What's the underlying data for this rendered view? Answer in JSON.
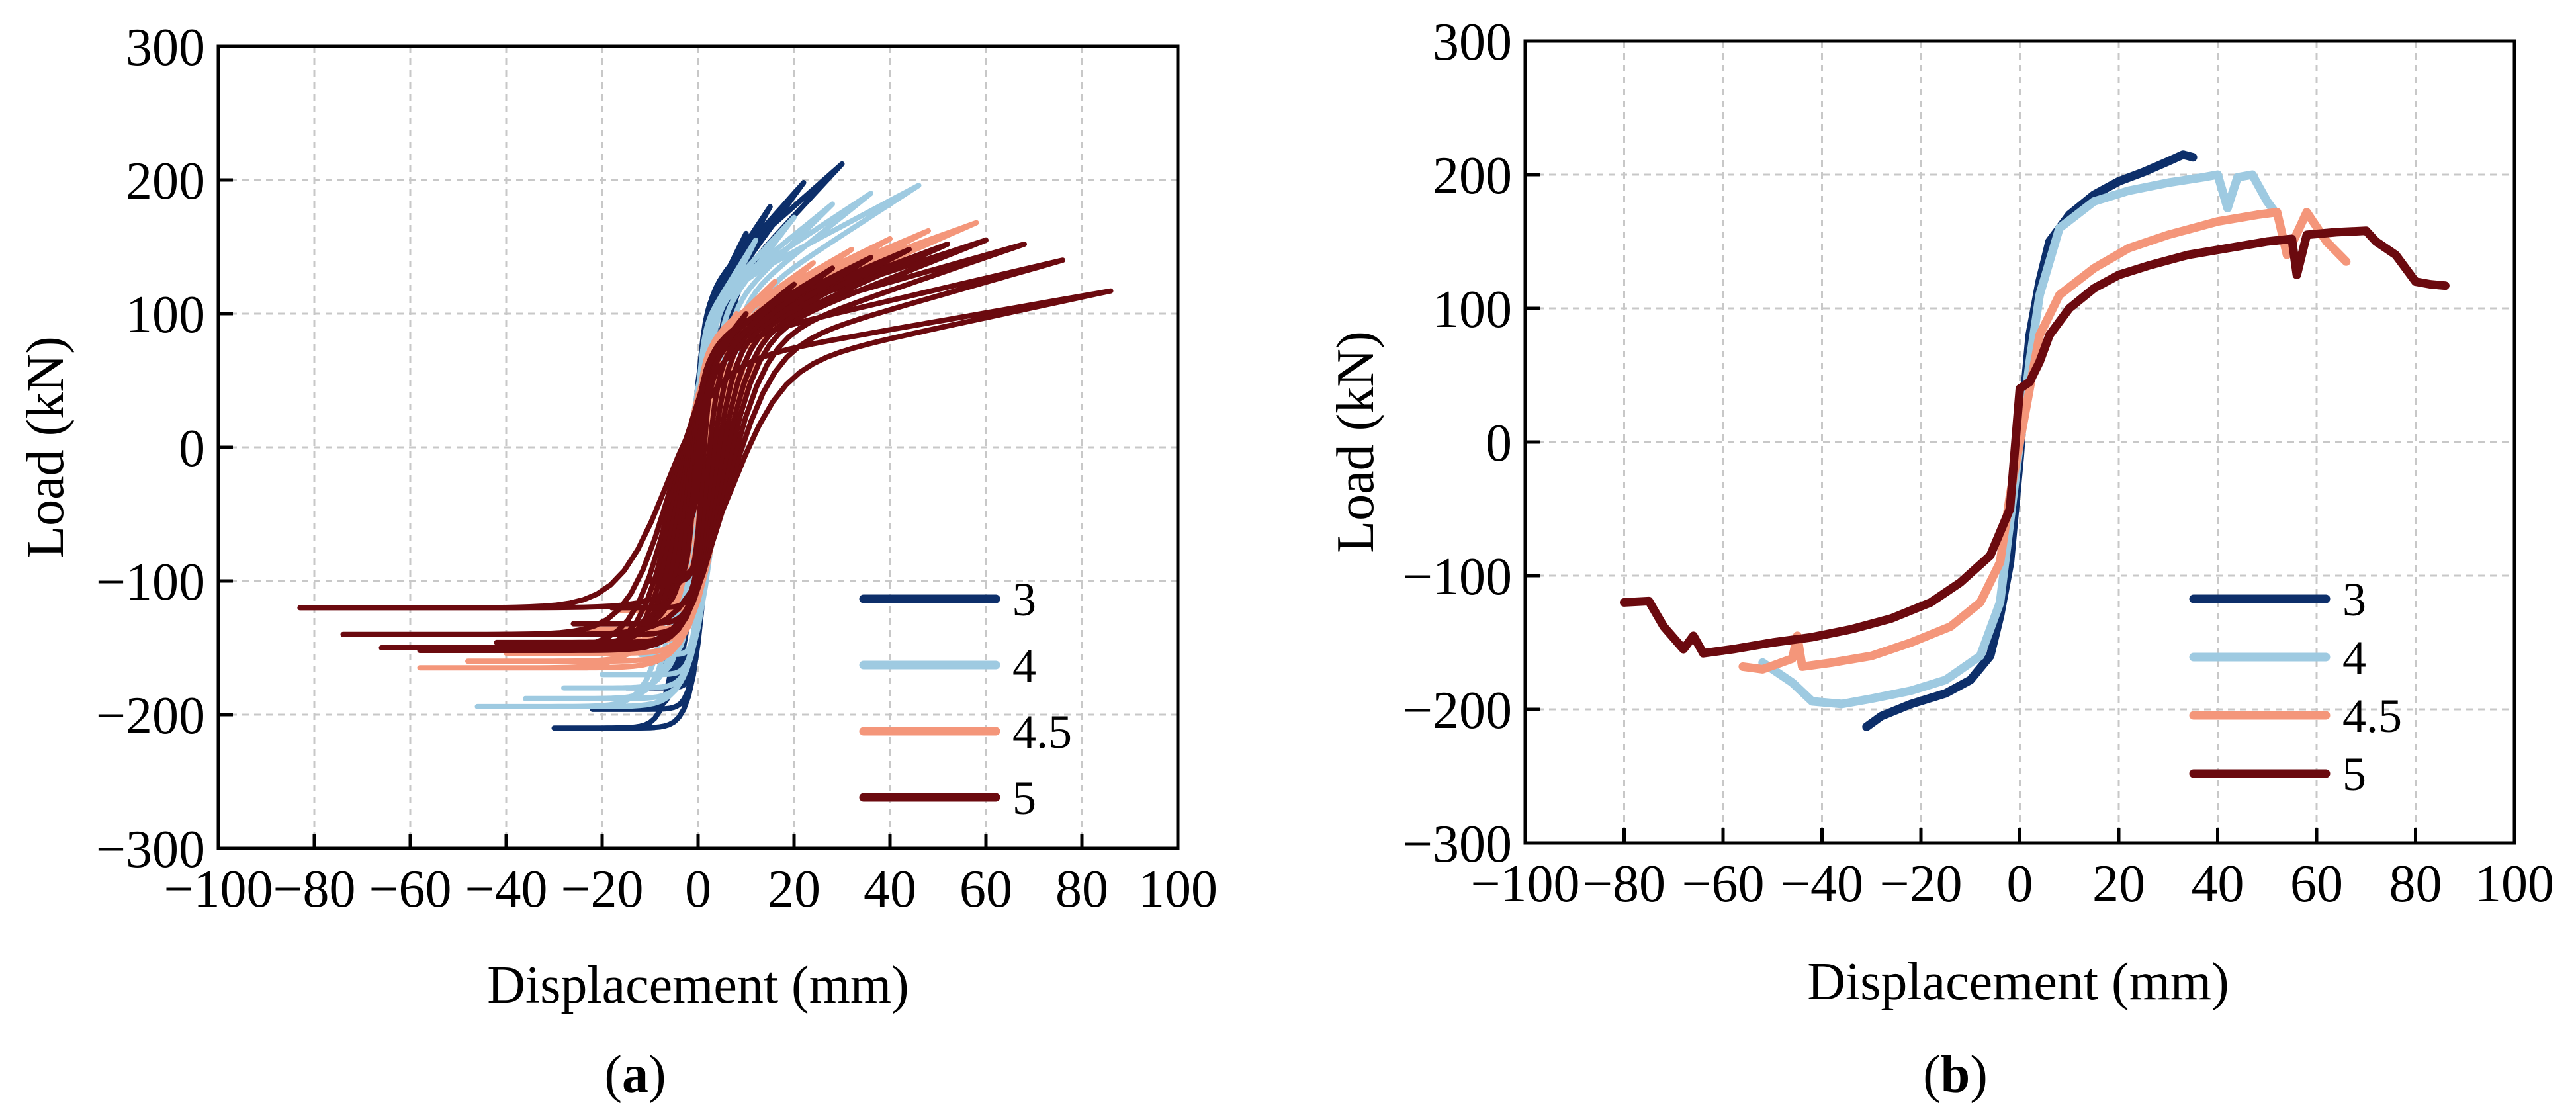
{
  "chart_data": [
    {
      "id": "a",
      "type": "line",
      "caption_label": "a",
      "xlabel": "Displacement (mm)",
      "ylabel": "Load (kN)",
      "xlim": [
        -100,
        100
      ],
      "ylim": [
        -300,
        300
      ],
      "xticks": [
        -100,
        -80,
        -60,
        -40,
        -20,
        0,
        20,
        40,
        60,
        80,
        100
      ],
      "yticks": [
        -300,
        -200,
        -100,
        0,
        100,
        200,
        300
      ],
      "xtick_labels": [
        "−100",
        "−80",
        "−60",
        "−40",
        "−20",
        "0",
        "20",
        "40",
        "60",
        "80",
        "100"
      ],
      "ytick_labels": [
        "−300",
        "−200",
        "−100",
        "0",
        "100",
        "200",
        "300"
      ],
      "grid": true,
      "legend_position": "bottom-right",
      "series": [
        {
          "name": "3",
          "color": "#0d2f6a",
          "cycles": [
            [
              -30,
              -210,
              30,
              212
            ],
            [
              -22,
              -196,
              22,
              198
            ],
            [
              -15,
              -180,
              15,
              180
            ],
            [
              -10,
              -160,
              10,
              160
            ],
            [
              -6,
              -130,
              6,
              130
            ]
          ]
        },
        {
          "name": "4",
          "color": "#9ecae1",
          "cycles": [
            [
              -46,
              -194,
              46,
              196
            ],
            [
              -36,
              -188,
              36,
              190
            ],
            [
              -28,
              -180,
              28,
              182
            ],
            [
              -20,
              -170,
              20,
              172
            ],
            [
              -12,
              -155,
              12,
              155
            ],
            [
              -6,
              -120,
              6,
              120
            ]
          ]
        },
        {
          "name": "4.5",
          "color": "#f4967a",
          "cycles": [
            [
              -58,
              -165,
              58,
              168
            ],
            [
              -48,
              -160,
              48,
              162
            ],
            [
              -40,
              -154,
              40,
              156
            ],
            [
              -32,
              -146,
              32,
              148
            ],
            [
              -24,
              -136,
              24,
              138
            ],
            [
              -16,
              -122,
              16,
              124
            ],
            [
              -8,
              -100,
              8,
              100
            ]
          ]
        },
        {
          "name": "5",
          "color": "#6b0a0f",
          "cycles": [
            [
              -83,
              -120,
              86,
              117
            ],
            [
              -74,
              -140,
              76,
              140
            ],
            [
              -66,
              -150,
              68,
              152
            ],
            [
              -58,
              -152,
              60,
              155
            ],
            [
              -50,
              -150,
              52,
              152
            ],
            [
              -42,
              -146,
              44,
              148
            ],
            [
              -34,
              -140,
              36,
              142
            ],
            [
              -26,
              -132,
              28,
              134
            ],
            [
              -18,
              -120,
              20,
              122
            ],
            [
              -10,
              -100,
              10,
              100
            ],
            [
              -4,
              -60,
              4,
              60
            ]
          ]
        }
      ]
    },
    {
      "id": "b",
      "type": "line",
      "caption_label": "b",
      "xlabel": "Displacement (mm)",
      "ylabel": "Load (kN)",
      "xlim": [
        -100,
        100
      ],
      "ylim": [
        -300,
        300
      ],
      "xticks": [
        -100,
        -80,
        -60,
        -40,
        -20,
        0,
        20,
        40,
        60,
        80,
        100
      ],
      "yticks": [
        -300,
        -200,
        -100,
        0,
        100,
        200,
        300
      ],
      "xtick_labels": [
        "−100",
        "−80",
        "−60",
        "−40",
        "−20",
        "0",
        "20",
        "40",
        "60",
        "80",
        "100"
      ],
      "ytick_labels": [
        "−300",
        "−200",
        "−100",
        "0",
        "100",
        "200",
        "300"
      ],
      "grid": true,
      "legend_position": "bottom-right",
      "series": [
        {
          "name": "3",
          "color": "#0d2f6a",
          "points": [
            [
              -31,
              -213
            ],
            [
              -28,
              -205
            ],
            [
              -22,
              -196
            ],
            [
              -15,
              -188
            ],
            [
              -10,
              -178
            ],
            [
              -6,
              -160
            ],
            [
              -4,
              -130
            ],
            [
              -2,
              -90
            ],
            [
              0,
              -10
            ],
            [
              1,
              40
            ],
            [
              2,
              80
            ],
            [
              4,
              120
            ],
            [
              6,
              150
            ],
            [
              10,
              170
            ],
            [
              15,
              185
            ],
            [
              20,
              195
            ],
            [
              25,
              202
            ],
            [
              30,
              210
            ],
            [
              33,
              215
            ],
            [
              35,
              213
            ]
          ]
        },
        {
          "name": "4",
          "color": "#9ecae1",
          "points": [
            [
              -52,
              -165
            ],
            [
              -46,
              -180
            ],
            [
              -42,
              -194
            ],
            [
              -36,
              -196
            ],
            [
              -30,
              -192
            ],
            [
              -22,
              -186
            ],
            [
              -15,
              -178
            ],
            [
              -8,
              -160
            ],
            [
              -4,
              -120
            ],
            [
              -2,
              -60
            ],
            [
              0,
              0
            ],
            [
              2,
              60
            ],
            [
              4,
              110
            ],
            [
              8,
              160
            ],
            [
              15,
              180
            ],
            [
              22,
              188
            ],
            [
              30,
              194
            ],
            [
              37,
              198
            ],
            [
              40,
              200
            ],
            [
              42,
              175
            ],
            [
              44,
              198
            ],
            [
              47,
              200
            ],
            [
              50,
              180
            ],
            [
              52,
              170
            ]
          ]
        },
        {
          "name": "4.5",
          "color": "#f4967a",
          "points": [
            [
              -56,
              -168
            ],
            [
              -52,
              -170
            ],
            [
              -46,
              -162
            ],
            [
              -45,
              -145
            ],
            [
              -44,
              -168
            ],
            [
              -38,
              -165
            ],
            [
              -30,
              -160
            ],
            [
              -22,
              -150
            ],
            [
              -14,
              -138
            ],
            [
              -8,
              -120
            ],
            [
              -4,
              -90
            ],
            [
              -2,
              -40
            ],
            [
              0,
              0
            ],
            [
              2,
              40
            ],
            [
              4,
              80
            ],
            [
              8,
              110
            ],
            [
              15,
              130
            ],
            [
              22,
              145
            ],
            [
              30,
              155
            ],
            [
              40,
              165
            ],
            [
              48,
              170
            ],
            [
              52,
              172
            ],
            [
              54,
              140
            ],
            [
              58,
              172
            ],
            [
              62,
              150
            ],
            [
              66,
              135
            ]
          ]
        },
        {
          "name": "5",
          "color": "#6b0a0f",
          "points": [
            [
              -80,
              -120
            ],
            [
              -75,
              -119
            ],
            [
              -72,
              -138
            ],
            [
              -68,
              -155
            ],
            [
              -66,
              -145
            ],
            [
              -64,
              -158
            ],
            [
              -58,
              -155
            ],
            [
              -50,
              -150
            ],
            [
              -42,
              -146
            ],
            [
              -34,
              -140
            ],
            [
              -26,
              -132
            ],
            [
              -18,
              -120
            ],
            [
              -12,
              -105
            ],
            [
              -6,
              -85
            ],
            [
              -2,
              -50
            ],
            [
              0,
              40
            ],
            [
              2,
              45
            ],
            [
              4,
              60
            ],
            [
              6,
              80
            ],
            [
              10,
              100
            ],
            [
              15,
              115
            ],
            [
              20,
              125
            ],
            [
              26,
              132
            ],
            [
              34,
              140
            ],
            [
              42,
              145
            ],
            [
              50,
              150
            ],
            [
              55,
              152
            ],
            [
              56,
              125
            ],
            [
              58,
              155
            ],
            [
              64,
              157
            ],
            [
              70,
              158
            ],
            [
              72,
              150
            ],
            [
              76,
              140
            ],
            [
              80,
              120
            ],
            [
              83,
              118
            ],
            [
              86,
              117
            ]
          ]
        }
      ]
    }
  ]
}
